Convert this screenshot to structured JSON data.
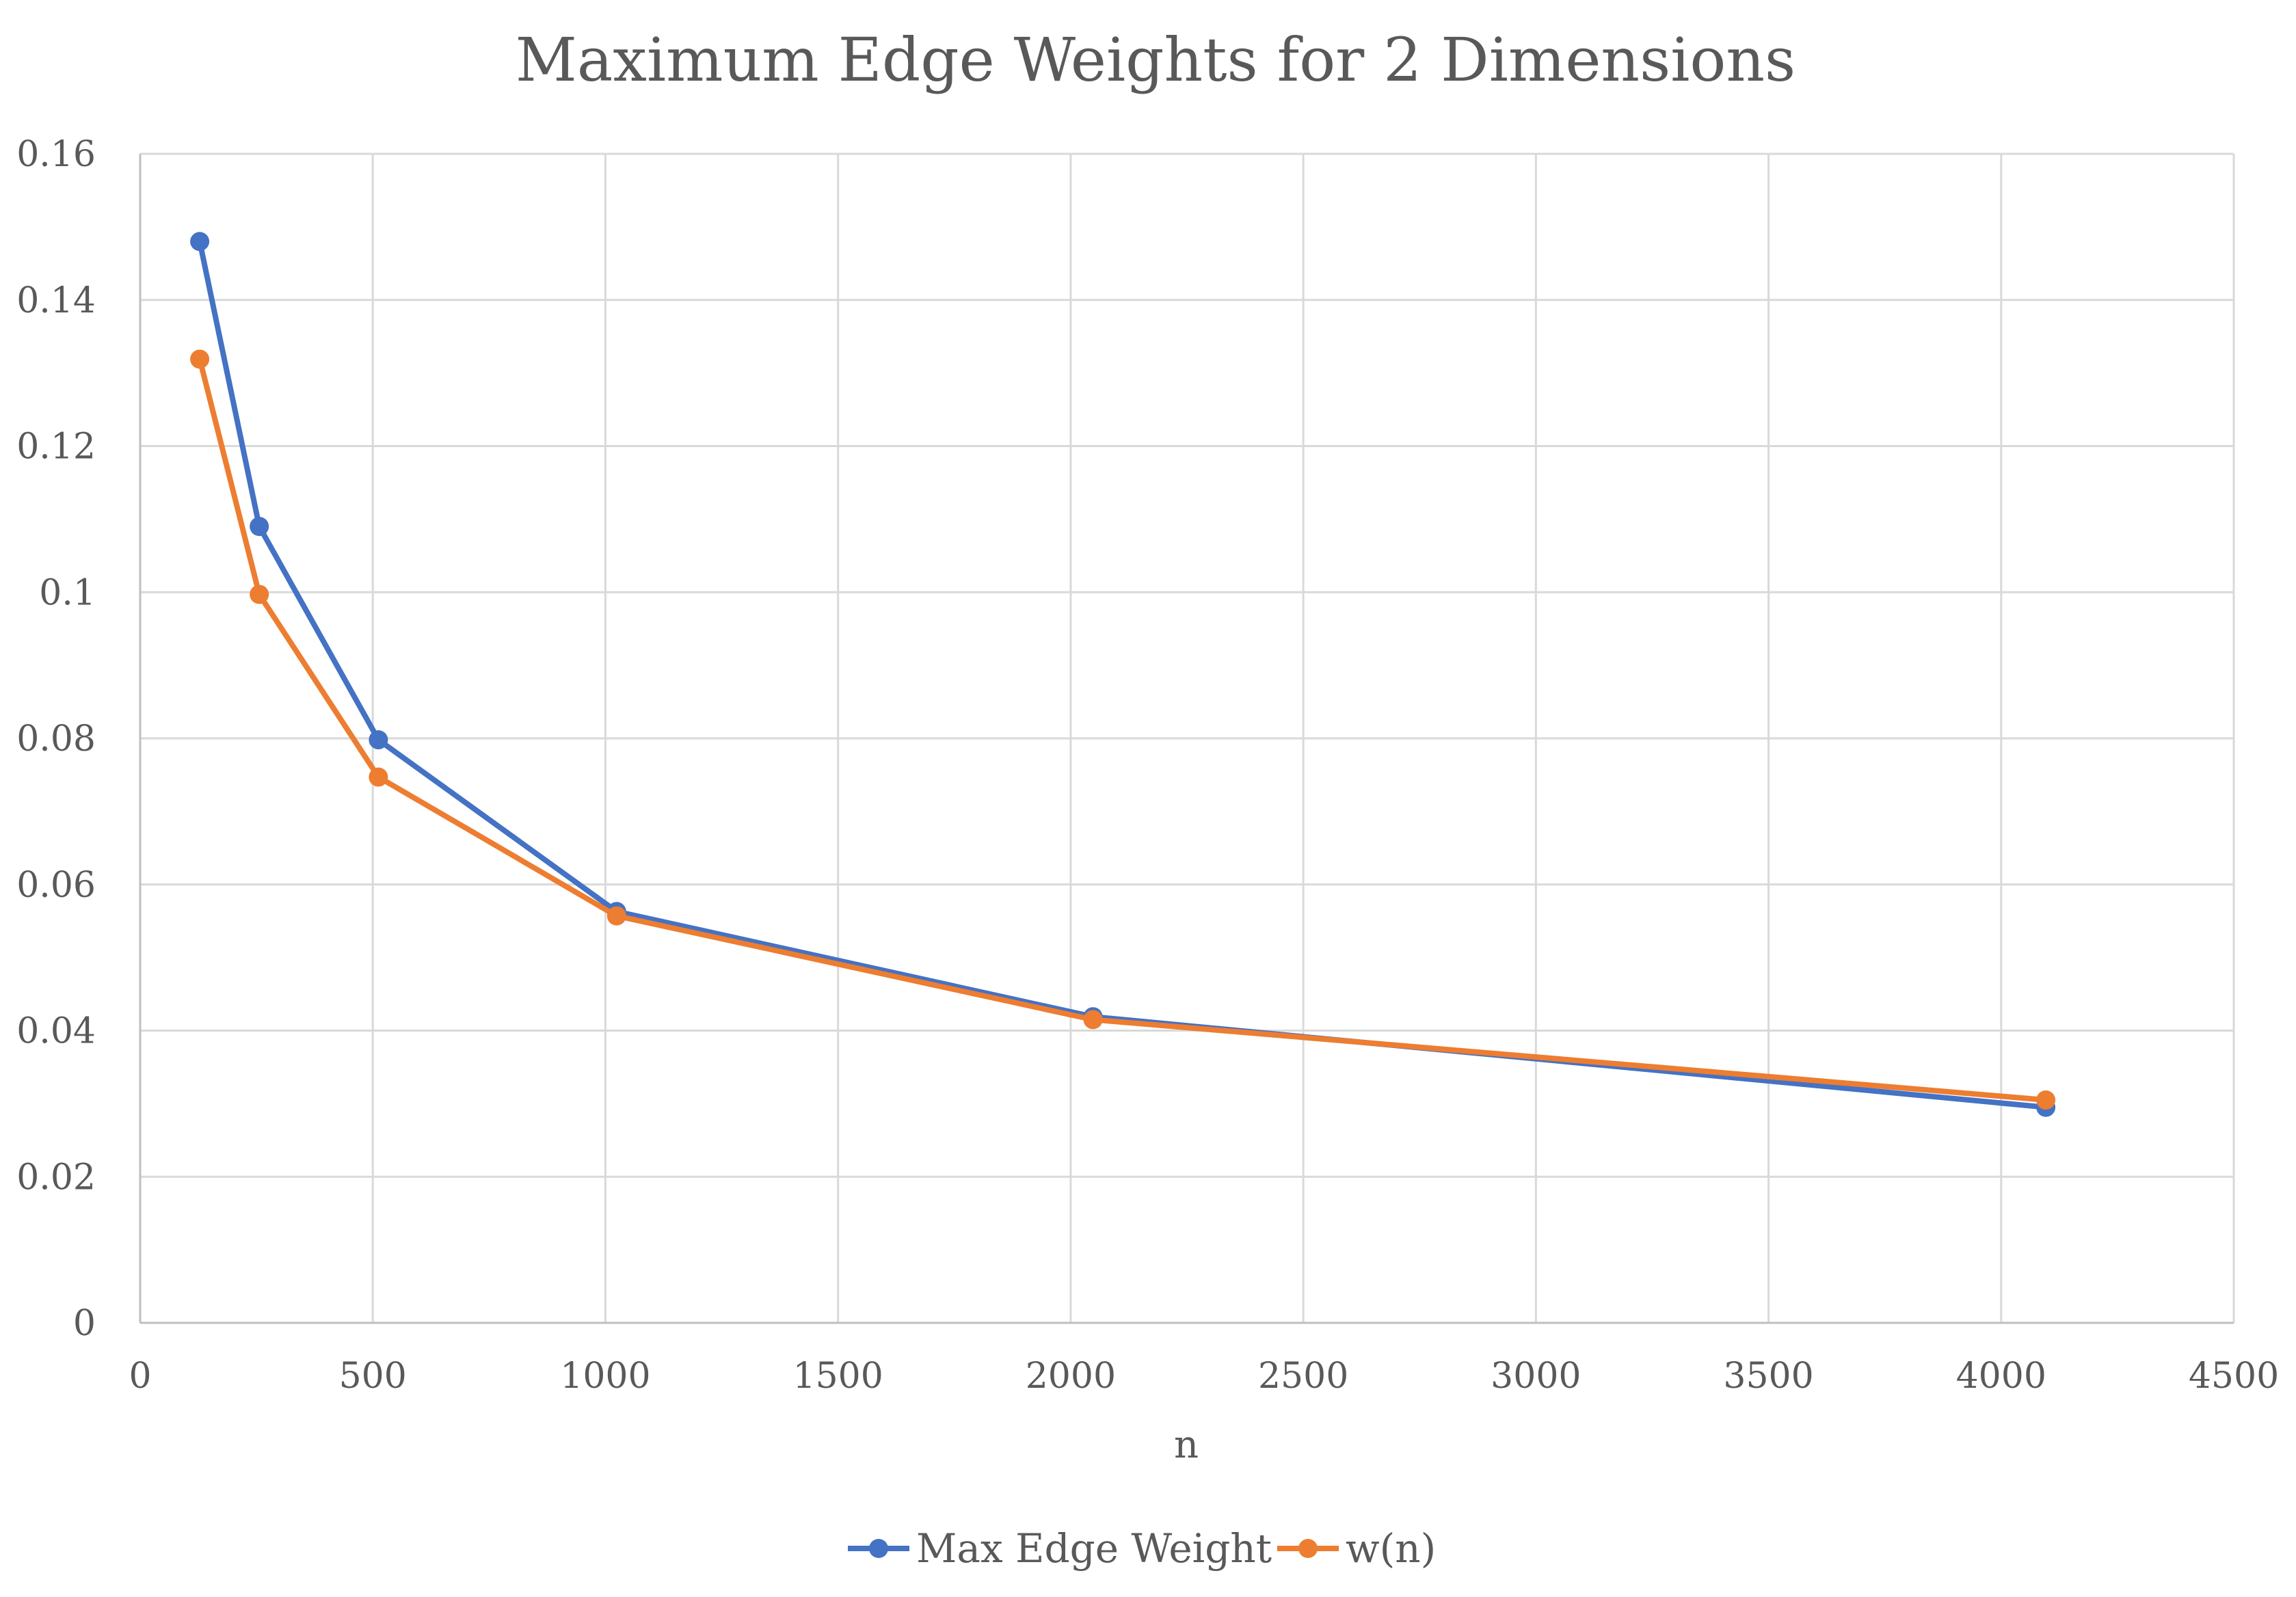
{
  "chart_data": {
    "type": "line",
    "title": "Maximum Edge Weights for 2 Dimensions",
    "xlabel": "n",
    "ylabel": "",
    "xlim": [
      0,
      4500
    ],
    "ylim": [
      0,
      0.16
    ],
    "x_ticks": [
      0,
      500,
      1000,
      1500,
      2000,
      2500,
      3000,
      3500,
      4000,
      4500
    ],
    "y_ticks": [
      0,
      0.02,
      0.04,
      0.06,
      0.08,
      0.1,
      0.12,
      0.14,
      0.16
    ],
    "x_tick_labels": [
      "0",
      "500",
      "1000",
      "1500",
      "2000",
      "2500",
      "3000",
      "3500",
      "4000",
      "4500"
    ],
    "y_tick_labels": [
      "0",
      "0.02",
      "0.04",
      "0.06",
      "0.08",
      "0.1",
      "0.12",
      "0.14",
      "0.16"
    ],
    "grid": true,
    "legend_position": "bottom",
    "series": [
      {
        "name": "Max Edge Weight",
        "color": "#4472c4",
        "x": [
          128,
          256,
          512,
          1024,
          2048,
          4096
        ],
        "y": [
          0.148,
          0.109,
          0.0798,
          0.0563,
          0.0419,
          0.0295
        ]
      },
      {
        "name": "w(n)",
        "color": "#ed7d31",
        "x": [
          128,
          256,
          512,
          1024,
          2048,
          4096
        ],
        "y": [
          0.1319,
          0.0997,
          0.0747,
          0.0557,
          0.0415,
          0.0305
        ]
      }
    ]
  }
}
